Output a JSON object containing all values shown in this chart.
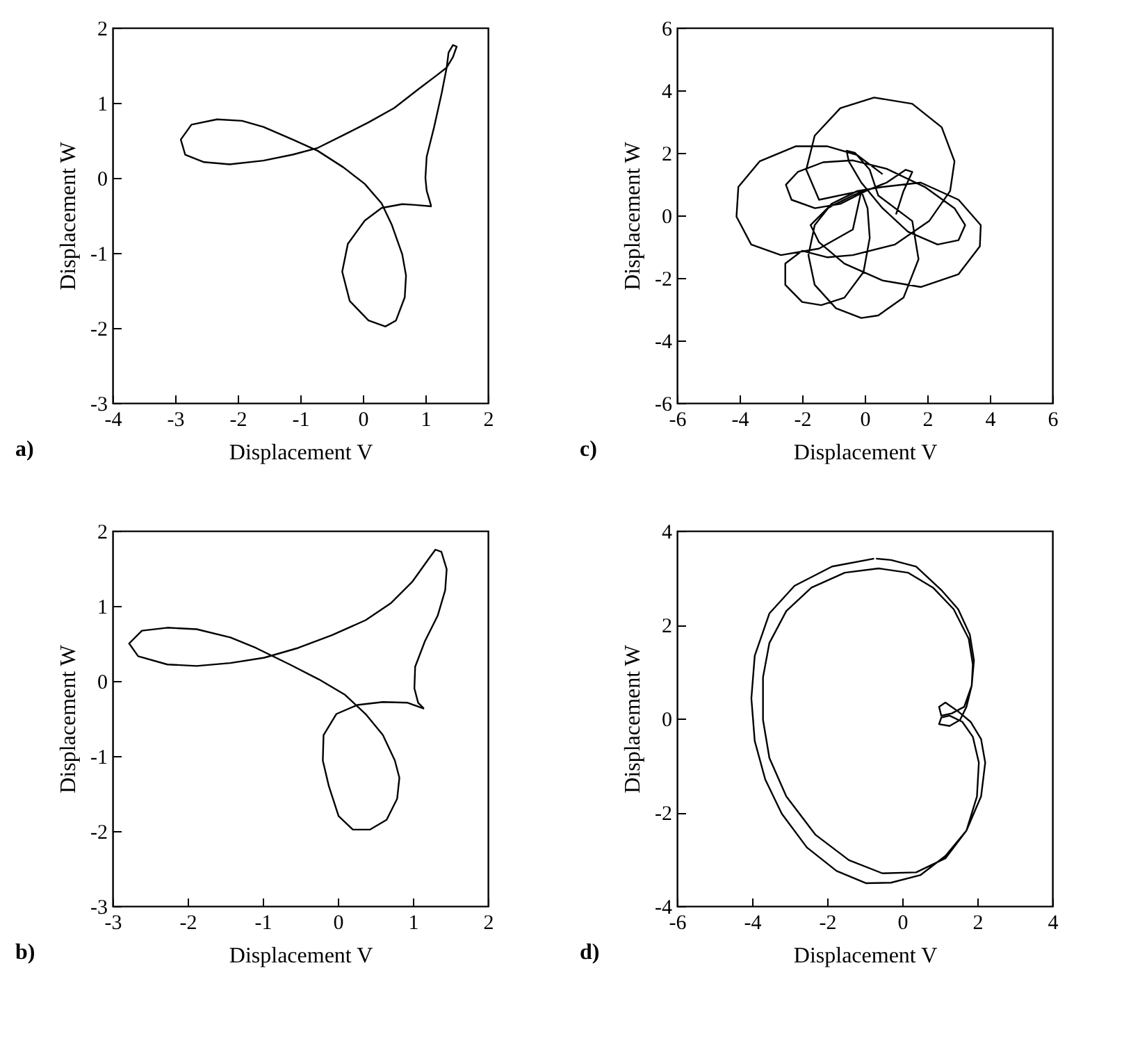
{
  "chart_data": [
    {
      "type": "line",
      "xlabel": "Displacement V",
      "ylabel": "Displacement W",
      "xlim": [
        -4,
        2
      ],
      "ylim": [
        -3,
        2
      ],
      "xticks": [
        -4,
        -3,
        -2,
        -1,
        0,
        1,
        2
      ],
      "yticks": [
        -3,
        -2,
        -1,
        0,
        1,
        2
      ],
      "grid": false,
      "annotations": [
        "a)"
      ],
      "series": [
        {
          "color": "#000000",
          "x": [
            1.1,
            0.83,
            0.63,
            0.3,
            0.03,
            -0.24,
            -0.33,
            -0.21,
            0.09,
            0.36,
            0.53,
            0.67,
            0.69,
            0.63,
            0.46,
            0.3,
            0.03,
            -0.31,
            -0.72,
            -1.12,
            -1.59,
            -1.93,
            -2.33,
            -2.74,
            -2.91,
            -2.84,
            -2.54,
            -2.13,
            -1.59,
            -1.12,
            -0.72,
            -0.31,
            0.09,
            0.5,
            0.9,
            1.17,
            1.34,
            1.44,
            1.5,
            1.44,
            1.37,
            1.34,
            1.26,
            1.14,
            1.02,
            1.0,
            1.02,
            1.09
          ],
          "values": [
            -0.38,
            -0.36,
            -0.35,
            -0.4,
            -0.57,
            -0.88,
            -1.25,
            -1.64,
            -1.9,
            -1.98,
            -1.9,
            -1.59,
            -1.3,
            -1.02,
            -0.62,
            -0.34,
            -0.08,
            0.14,
            0.36,
            0.51,
            0.68,
            0.76,
            0.78,
            0.71,
            0.51,
            0.31,
            0.21,
            0.18,
            0.23,
            0.31,
            0.4,
            0.57,
            0.74,
            0.93,
            1.19,
            1.36,
            1.47,
            1.61,
            1.75,
            1.77,
            1.67,
            1.47,
            1.13,
            0.68,
            0.28,
            0,
            -0.17,
            -0.37
          ]
        }
      ]
    },
    {
      "type": "line",
      "xlabel": "Displacement V",
      "ylabel": "Displacement W",
      "xlim": [
        -6,
        6
      ],
      "ylim": [
        -6,
        6
      ],
      "xticks": [
        -6,
        -4,
        -2,
        0,
        2,
        4,
        6
      ],
      "yticks": [
        -6,
        -4,
        -2,
        0,
        2,
        4,
        6
      ],
      "grid": false,
      "annotations": [
        "c)"
      ],
      "series": [
        {
          "color": "#000000",
          "x": [
            1.0,
            1.24,
            1.52,
            1.31,
            0.7,
            0.03,
            -0.78,
            -1.59,
            -2.34,
            -2.52,
            -2.14,
            -1.33,
            -0.38,
            0.7,
            1.92,
            2.87,
            3.21,
            3.0,
            2.33,
            1.38,
            0.57,
            -0.11,
            -0.51,
            -0.58,
            -0.31,
            0.16,
            0.43,
            1.52,
            1.72,
            1.24,
            0.43,
            -0.11,
            -0.92,
            -1.6,
            -1.8,
            -1.6,
            -1.06,
            -0.24,
            0.57,
            1.79,
            3.0,
            3.71,
            3.68,
            3.0,
            1.79,
            0.57,
            -0.65,
            -1.46,
            -1.73,
            -1.19,
            -0.38,
            0.16,
            -1.46,
            -1.87,
            -1.6,
            -0.78,
            0.3,
            1.52,
            2.46,
            2.87,
            2.73,
            2.06,
            0.97,
            -0.38,
            -1.19,
            -2.0,
            -2.54,
            -2.54,
            -2.0,
            -1.39,
            -0.65,
            -0.04,
            0.16,
            0.09,
            -0.11,
            -0.38,
            -1.46,
            -2.68,
            -3.63,
            -4.1,
            -4.04,
            -3.36,
            -2.21,
            -1.19,
            -0.24,
            0.57
          ],
          "values": [
            0.03,
            0.78,
            1.39,
            1.46,
            1.05,
            0.78,
            0.37,
            0.23,
            0.5,
            0.98,
            1.39,
            1.7,
            1.76,
            1.49,
            0.91,
            0.23,
            -0.31,
            -0.79,
            -0.93,
            -0.52,
            0.23,
            1.05,
            1.73,
            2.07,
            2.0,
            1.46,
            0.64,
            -0.18,
            -1.4,
            -2.63,
            -3.2,
            -3.28,
            -2.97,
            -2.22,
            -1.27,
            -0.31,
            0.37,
            0.78,
            0.91,
            1.05,
            0.5,
            -0.31,
            -0.99,
            -1.88,
            -2.29,
            -2.08,
            -1.54,
            -0.86,
            -0.31,
            0.23,
            0.64,
            0.84,
            0.5,
            1.46,
            2.55,
            3.43,
            3.77,
            3.57,
            2.82,
            1.73,
            0.78,
            -0.18,
            -0.93,
            -1.27,
            -1.34,
            -1.13,
            -1.54,
            -2.22,
            -2.77,
            -2.87,
            -2.63,
            -1.81,
            -0.72,
            0.23,
            0.78,
            -0.45,
            -1.06,
            -1.27,
            -0.93,
            -0.04,
            0.91,
            1.73,
            2.21,
            2.21,
            1.93,
            1.32
          ]
        }
      ]
    },
    {
      "type": "line",
      "xlabel": "Displacement V",
      "ylabel": "Displacement W",
      "xlim": [
        -3,
        2
      ],
      "ylim": [
        -3,
        2
      ],
      "xticks": [
        -3,
        -2,
        -1,
        0,
        1,
        2
      ],
      "yticks": [
        -3,
        -2,
        -1,
        0,
        1,
        2
      ],
      "grid": false,
      "annotations": [
        "b)"
      ],
      "series": [
        {
          "color": "#000000",
          "x": [
            1.15,
            0.93,
            0.6,
            0.26,
            -0.02,
            -0.19,
            -0.2,
            -0.12,
            0.01,
            0.2,
            0.43,
            0.65,
            0.79,
            0.82,
            0.76,
            0.6,
            0.37,
            0.09,
            -0.25,
            -0.64,
            -1.09,
            -1.43,
            -1.88,
            -2.27,
            -2.61,
            -2.78,
            -2.66,
            -2.27,
            -1.88,
            -1.43,
            -0.98,
            -0.53,
            -0.08,
            0.37,
            0.71,
            0.99,
            1.19,
            1.3,
            1.38,
            1.45,
            1.43,
            1.33,
            1.16,
            1.03,
            1.02,
            1.07,
            1.14
          ],
          "values": [
            -0.37,
            -0.29,
            -0.28,
            -0.32,
            -0.44,
            -0.72,
            -1.06,
            -1.4,
            -1.8,
            -1.98,
            -1.98,
            -1.85,
            -1.57,
            -1.29,
            -1.06,
            -0.72,
            -0.44,
            -0.18,
            0.02,
            0.22,
            0.44,
            0.58,
            0.69,
            0.71,
            0.67,
            0.5,
            0.33,
            0.22,
            0.2,
            0.24,
            0.31,
            0.44,
            0.61,
            0.81,
            1.04,
            1.32,
            1.6,
            1.75,
            1.72,
            1.49,
            1.21,
            0.87,
            0.53,
            0.19,
            -0.1,
            -0.29,
            -0.36
          ]
        }
      ]
    },
    {
      "type": "line",
      "xlabel": "Displacement V",
      "ylabel": "Displacement W",
      "xlim": [
        -6,
        4
      ],
      "ylim": [
        -4,
        4
      ],
      "xticks": [
        -6,
        -4,
        -2,
        0,
        2,
        4
      ],
      "yticks": [
        -4,
        -2,
        0,
        2,
        4
      ],
      "grid": false,
      "annotations": [
        "d)"
      ],
      "series": [
        {
          "color": "#000000",
          "x": [
            -0.75,
            -1.87,
            -2.87,
            -3.54,
            -3.93,
            -4.02,
            -3.93,
            -3.65,
            -3.21,
            -2.54,
            -1.75,
            -0.97,
            -0.3,
            0.48,
            1.15,
            1.71,
            2.1,
            2.21,
            2.1,
            1.82,
            1.49,
            1.15,
            0.98,
            1.04,
            1.32,
            1.65,
            1.85,
            1.88,
            1.77,
            1.37,
            0.82,
            0.15,
            -0.63,
            -1.53,
            -2.42,
            -3.09,
            -3.54,
            -3.71,
            -3.71,
            -3.54,
            -3.09,
            -2.31,
            -1.42,
            -0.53,
            0.37,
            1.15,
            1.71,
            1.99,
            2.04,
            1.88,
            1.6,
            1.26,
            1.04,
            0.98,
            1.26,
            1.54,
            1.71,
            1.85,
            1.91,
            1.8,
            1.49,
            1.04,
            0.37,
            -0.3,
            -0.7
          ],
          "values": [
            3.41,
            3.24,
            2.83,
            2.24,
            1.34,
            0.43,
            -0.48,
            -1.3,
            -2.03,
            -2.75,
            -3.25,
            -3.51,
            -3.5,
            -3.34,
            -2.93,
            -2.39,
            -1.66,
            -0.94,
            -0.44,
            -0.07,
            0.15,
            0.34,
            0.25,
            0.06,
            0.11,
            0.25,
            0.7,
            1.15,
            1.7,
            2.33,
            2.79,
            3.11,
            3.2,
            3.11,
            2.79,
            2.29,
            1.61,
            0.88,
            -0.03,
            -0.84,
            -1.66,
            -2.48,
            -3.02,
            -3.3,
            -3.28,
            -2.98,
            -2.39,
            -1.66,
            -0.94,
            -0.39,
            -0.07,
            0.06,
            0.02,
            -0.12,
            -0.16,
            -0.03,
            0.25,
            0.7,
            1.24,
            1.79,
            2.33,
            2.74,
            3.24,
            3.38,
            3.41
          ]
        }
      ]
    }
  ]
}
